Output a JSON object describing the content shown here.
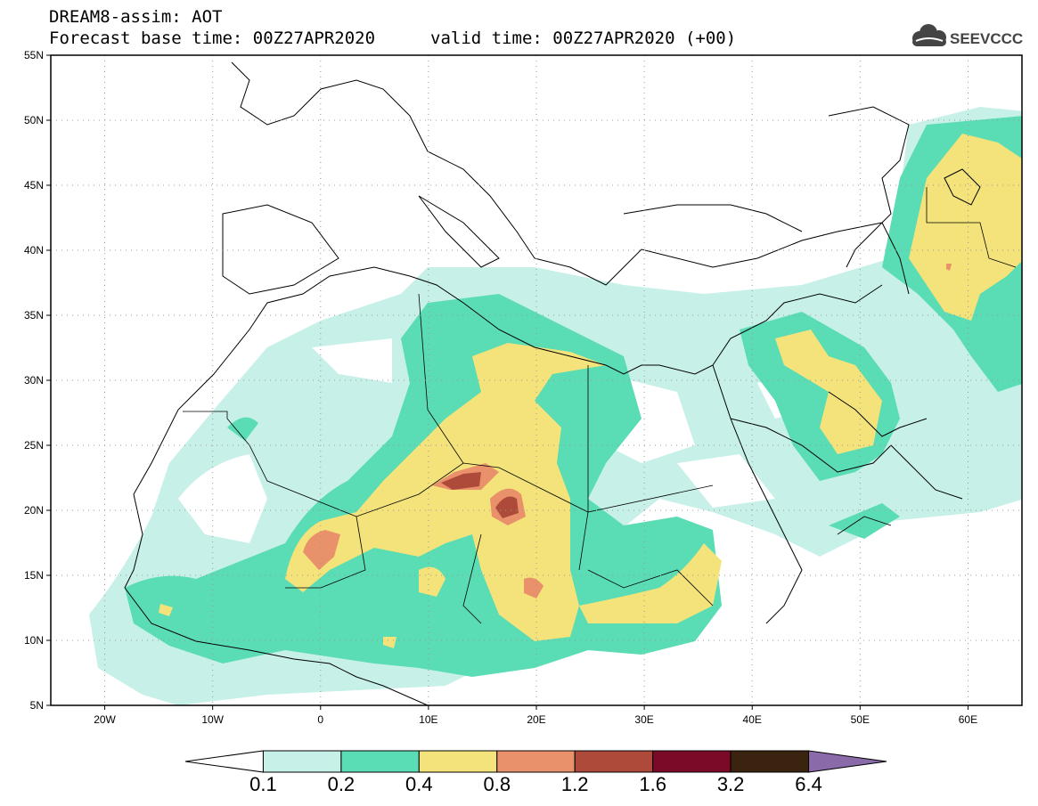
{
  "title": {
    "line1": "DREAM8-assim: AOT",
    "line2": "Forecast base time: 00Z27APR2020",
    "valid": "valid time: 00Z27APR2020 (+00)"
  },
  "logo": {
    "text": "SEEVCCC",
    "icon": "cloud-logo-icon"
  },
  "map": {
    "lon_range": [
      -25,
      65
    ],
    "lat_range": [
      5,
      55
    ],
    "lon_ticks": [
      {
        "v": -20,
        "label": "20W"
      },
      {
        "v": -10,
        "label": "10W"
      },
      {
        "v": 0,
        "label": "0"
      },
      {
        "v": 10,
        "label": "10E"
      },
      {
        "v": 20,
        "label": "20E"
      },
      {
        "v": 30,
        "label": "30E"
      },
      {
        "v": 40,
        "label": "40E"
      },
      {
        "v": 50,
        "label": "50E"
      },
      {
        "v": 60,
        "label": "60E"
      }
    ],
    "lat_ticks": [
      {
        "v": 5,
        "label": "5N"
      },
      {
        "v": 10,
        "label": "10N"
      },
      {
        "v": 15,
        "label": "15N"
      },
      {
        "v": 20,
        "label": "20N"
      },
      {
        "v": 25,
        "label": "25N"
      },
      {
        "v": 30,
        "label": "30N"
      },
      {
        "v": 35,
        "label": "35N"
      },
      {
        "v": 40,
        "label": "40N"
      },
      {
        "v": 45,
        "label": "45N"
      },
      {
        "v": 50,
        "label": "50N"
      },
      {
        "v": 55,
        "label": "55N"
      }
    ],
    "grid": "dotted"
  },
  "colorbar": {
    "levels": [
      "0.1",
      "0.2",
      "0.4",
      "0.8",
      "1.2",
      "1.6",
      "3.2",
      "6.4"
    ],
    "colors": [
      "#ffffff",
      "#c6f0e8",
      "#5adcb4",
      "#f4e37a",
      "#e8916a",
      "#ae4a3a",
      "#7a0a28",
      "#3a2410",
      "#8a6aa8"
    ],
    "extend": "both"
  }
}
